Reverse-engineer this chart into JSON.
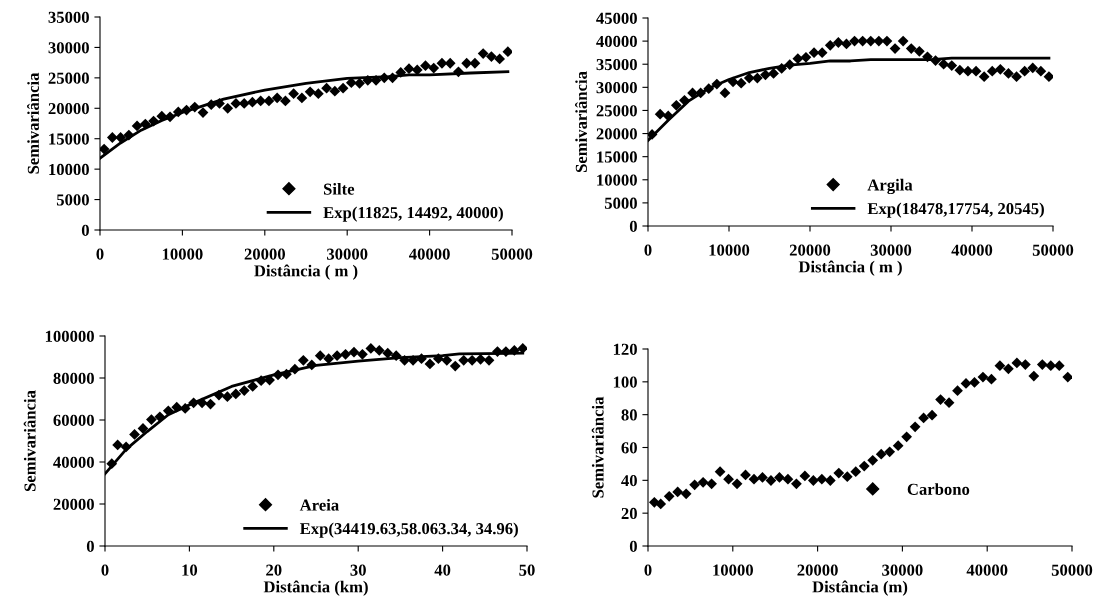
{
  "chart_data": [
    {
      "type": "scatter",
      "xlabel": "Distância ( m )",
      "ylabel": "Semivariância",
      "xlim": [
        0,
        50000
      ],
      "xticks": [
        0,
        10000,
        20000,
        30000,
        40000,
        50000
      ],
      "ylim": [
        0,
        35000
      ],
      "yticks": [
        0,
        5000,
        10000,
        15000,
        20000,
        25000,
        30000,
        35000
      ],
      "grid": false,
      "legend": "bottom right",
      "series": [
        {
          "name": "Silte",
          "marker": "diamond",
          "color": "#000000",
          "x": [
            500,
            1500,
            2500,
            3500,
            4500,
            5500,
            6500,
            7500,
            8500,
            9500,
            10500,
            11500,
            12500,
            13500,
            14500,
            15500,
            16500,
            17500,
            18500,
            19500,
            20500,
            21500,
            22500,
            23500,
            24500,
            25500,
            26500,
            27500,
            28500,
            29500,
            30500,
            31500,
            32500,
            33500,
            34500,
            35500,
            36500,
            37500,
            38500,
            39500,
            40500,
            41500,
            42500,
            43500,
            44500,
            45500,
            46500,
            47500,
            48500,
            49500
          ],
          "values": [
            13300,
            15200,
            15200,
            15600,
            17100,
            17400,
            17900,
            18700,
            18600,
            19400,
            19700,
            20200,
            19300,
            20600,
            20800,
            20000,
            20800,
            20800,
            21000,
            21200,
            21200,
            21700,
            21200,
            22400,
            21700,
            22700,
            22400,
            23300,
            22800,
            23300,
            24200,
            24100,
            24600,
            24600,
            25000,
            25000,
            25900,
            26500,
            26300,
            27000,
            26600,
            27400,
            27400,
            26000,
            27400,
            27400,
            29000,
            28500,
            28100,
            29300
          ]
        },
        {
          "name": "Exp(11825, 14492, 40000)",
          "type": "line",
          "marker": "none",
          "line_style": "solid",
          "color": "#000000",
          "x": [
            0,
            2500,
            5000,
            7500,
            10000,
            12500,
            15000,
            20000,
            25000,
            30000,
            35000,
            37500,
            40000,
            45000,
            49500
          ],
          "values": [
            11800,
            14300,
            16400,
            18000,
            19300,
            20400,
            21500,
            23000,
            24100,
            24900,
            25200,
            25500,
            25500,
            25800,
            26000
          ]
        }
      ]
    },
    {
      "type": "scatter",
      "xlabel": "Distância ( m )",
      "ylabel": "Semivariância",
      "xlim": [
        0,
        50000
      ],
      "xticks": [
        0,
        10000,
        20000,
        30000,
        40000,
        50000
      ],
      "ylim": [
        0,
        45000
      ],
      "yticks": [
        0,
        5000,
        10000,
        15000,
        20000,
        25000,
        30000,
        35000,
        40000,
        45000
      ],
      "grid": false,
      "legend": "bottom right",
      "series": [
        {
          "name": "Argila",
          "marker": "diamond",
          "color": "#000000",
          "x": [
            500,
            1500,
            2500,
            3500,
            4500,
            5500,
            6500,
            7500,
            8500,
            9500,
            10500,
            11500,
            12500,
            13500,
            14500,
            15500,
            16500,
            17500,
            18500,
            19500,
            20500,
            21500,
            22500,
            23500,
            24500,
            25500,
            26500,
            27500,
            28500,
            29500,
            30500,
            31500,
            32500,
            33500,
            34500,
            35500,
            36500,
            37500,
            38500,
            39500,
            40500,
            41500,
            42500,
            43500,
            44500,
            45500,
            46500,
            47500,
            48500,
            49500
          ],
          "values": [
            19800,
            24200,
            23800,
            26100,
            27200,
            28800,
            28800,
            29700,
            30700,
            28800,
            31200,
            30900,
            32000,
            32000,
            32700,
            33000,
            34100,
            34900,
            36200,
            36500,
            37500,
            37500,
            39100,
            39700,
            39400,
            40000,
            40000,
            40000,
            40000,
            40000,
            38400,
            40000,
            38400,
            37800,
            36600,
            35800,
            35000,
            34700,
            33700,
            33500,
            33500,
            32300,
            33500,
            33900,
            33000,
            32300,
            33500,
            34200,
            33500,
            32300
          ]
        },
        {
          "name": "Exp(18478,17754, 20545)",
          "type": "line",
          "marker": "none",
          "line_style": "solid",
          "color": "#000000",
          "x": [
            0,
            2500,
            5000,
            7500,
            10000,
            12500,
            15000,
            17500,
            20000,
            22500,
            25000,
            27500,
            35000,
            37500,
            49500
          ],
          "values": [
            18500,
            22900,
            27000,
            29800,
            31700,
            33200,
            34100,
            34800,
            35200,
            35700,
            35700,
            36000,
            36000,
            36300,
            36300
          ]
        }
      ]
    },
    {
      "type": "scatter",
      "xlabel": "Distância (km)",
      "ylabel": "Semivariância",
      "xlim": [
        0,
        50
      ],
      "xticks": [
        0,
        10,
        20,
        30,
        40,
        50
      ],
      "ylim": [
        0,
        100000
      ],
      "yticks": [
        0,
        20000,
        40000,
        60000,
        80000,
        100000
      ],
      "grid": false,
      "legend": "bottom right",
      "series": [
        {
          "name": "Areia",
          "marker": "diamond",
          "color": "#000000",
          "x": [
            0.8,
            1.5,
            2.5,
            3.5,
            4.5,
            5.5,
            6.5,
            7.5,
            8.5,
            9.5,
            10.5,
            11.5,
            12.5,
            13.5,
            14.5,
            15.5,
            16.5,
            17.5,
            18.5,
            19.5,
            20.5,
            21.5,
            22.5,
            23.5,
            24.5,
            25.5,
            26.5,
            27.5,
            28.5,
            29.5,
            30.5,
            31.5,
            32.5,
            33.5,
            34.5,
            35.5,
            36.5,
            37.5,
            38.5,
            39.5,
            40.5,
            41.5,
            42.5,
            43.5,
            44.5,
            45.5,
            46.5,
            47.5,
            48.5,
            49.5
          ],
          "values": [
            39200,
            48100,
            47200,
            53100,
            56000,
            60200,
            61500,
            64400,
            66100,
            65500,
            68200,
            68200,
            67600,
            71900,
            71100,
            72400,
            74000,
            76000,
            78700,
            79000,
            81500,
            81800,
            84200,
            88400,
            86200,
            90600,
            89200,
            90600,
            91300,
            92300,
            91300,
            94100,
            93100,
            91800,
            90600,
            88400,
            88400,
            89200,
            86700,
            89200,
            88400,
            85700,
            88400,
            88400,
            88900,
            88400,
            92600,
            92600,
            93100,
            94100
          ]
        },
        {
          "name": "Exp(34419.63,58.063.34, 34.96)",
          "type": "line",
          "marker": "none",
          "line_style": "solid",
          "color": "#000000",
          "x": [
            0,
            2.5,
            5,
            7.5,
            10,
            15,
            20,
            25,
            30,
            35,
            40,
            42,
            49.5
          ],
          "values": [
            34400,
            46000,
            54500,
            62500,
            67200,
            76000,
            81500,
            86000,
            88000,
            89700,
            90700,
            91500,
            91800
          ]
        }
      ]
    },
    {
      "type": "scatter",
      "xlabel": "Distância (m)",
      "ylabel": "Semivariância",
      "xlim": [
        0,
        50000
      ],
      "xticks": [
        0,
        10000,
        20000,
        30000,
        40000,
        50000
      ],
      "ylim": [
        0,
        120
      ],
      "yticks": [
        0,
        20,
        40,
        60,
        80,
        100,
        120
      ],
      "grid": false,
      "legend": "bottom center",
      "series": [
        {
          "name": "Carbono",
          "marker": "diamond",
          "color": "#000000",
          "x": [
            750,
            1500,
            2500,
            3500,
            4500,
            5500,
            6500,
            7500,
            8500,
            9500,
            10500,
            11500,
            12500,
            13500,
            14500,
            15500,
            16500,
            17500,
            18500,
            19500,
            20500,
            21500,
            22500,
            23500,
            24500,
            25500,
            26500,
            27500,
            28500,
            29500,
            30500,
            31500,
            32500,
            33500,
            34500,
            35500,
            36500,
            37500,
            38500,
            39500,
            40500,
            41500,
            42500,
            43500,
            44500,
            45500,
            46500,
            47500,
            48500,
            49500
          ],
          "values": [
            26.6,
            25.6,
            30.3,
            32.9,
            31.8,
            37.3,
            38.8,
            37.9,
            45.3,
            40.7,
            37.9,
            43.3,
            40.7,
            41.8,
            39.9,
            41.8,
            40.7,
            37.9,
            42.7,
            39.9,
            40.7,
            39.9,
            44.4,
            42.2,
            45.3,
            48.7,
            52.2,
            55.9,
            57.4,
            61.1,
            66.5,
            72.6,
            78.0,
            79.7,
            89.2,
            87.3,
            94.6,
            99.0,
            99.6,
            102.9,
            101.6,
            109.8,
            107.9,
            111.5,
            110.5,
            103.5,
            110.5,
            109.8,
            109.8,
            102.9
          ]
        }
      ]
    }
  ]
}
